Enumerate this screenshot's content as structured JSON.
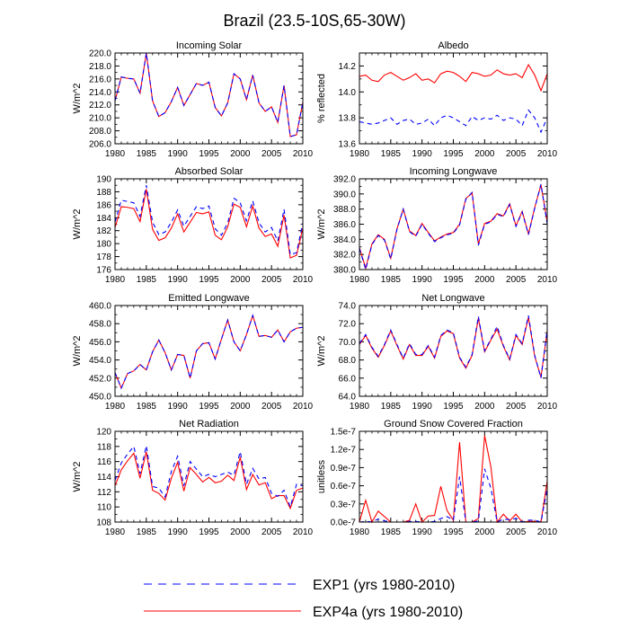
{
  "title": "Brazil (23.5-10S,65-30W)",
  "legend": [
    {
      "label": "EXP1 (yrs 1980-2010)",
      "color": "#0000ff",
      "dash": true
    },
    {
      "label": "EXP4a (yrs 1980-2010)",
      "color": "#ff0000",
      "dash": false
    }
  ],
  "years": [
    1980,
    1981,
    1982,
    1983,
    1984,
    1985,
    1986,
    1987,
    1988,
    1989,
    1990,
    1991,
    1992,
    1993,
    1994,
    1995,
    1996,
    1997,
    1998,
    1999,
    2000,
    2001,
    2002,
    2003,
    2004,
    2005,
    2006,
    2007,
    2008,
    2009,
    2010
  ],
  "chart_data": [
    {
      "type": "line",
      "title": "Incoming Solar",
      "ylabel": "W/m^2",
      "xlim": [
        1980,
        2010
      ],
      "ylim": [
        206,
        220
      ],
      "xticks": [
        "1980",
        "1985",
        "1990",
        "1995",
        "2000",
        "2005",
        "2010"
      ],
      "yticks": [
        "206.0",
        "208.0",
        "210.0",
        "212.0",
        "214.0",
        "216.0",
        "218.0",
        "220.0"
      ],
      "series": [
        {
          "name": "EXP1",
          "values": [
            212.6,
            216.3,
            216.1,
            216.0,
            213.8,
            220.0,
            212.6,
            210.2,
            210.8,
            212.5,
            214.7,
            211.9,
            213.6,
            215.3,
            215.0,
            215.5,
            211.6,
            210.3,
            212.3,
            216.8,
            216.0,
            212.8,
            216.6,
            212.3,
            211.0,
            211.7,
            209.3,
            215.0,
            207.1,
            207.4,
            212.4
          ]
        },
        {
          "name": "EXP4a",
          "values": [
            212.6,
            216.3,
            216.1,
            216.0,
            213.8,
            220.0,
            212.6,
            210.2,
            210.8,
            212.5,
            214.7,
            211.9,
            213.6,
            215.3,
            215.0,
            215.5,
            211.6,
            210.3,
            212.3,
            216.8,
            216.0,
            212.8,
            216.6,
            212.3,
            211.0,
            211.7,
            209.3,
            215.0,
            207.1,
            207.4,
            212.4
          ]
        }
      ]
    },
    {
      "type": "line",
      "title": "Albedo",
      "ylabel": "% reflected",
      "xlim": [
        1980,
        2010
      ],
      "ylim": [
        13.6,
        14.3
      ],
      "xticks": [
        "1980",
        "1985",
        "1990",
        "1995",
        "2000",
        "2005",
        "2010"
      ],
      "yticks": [
        "13.6",
        "13.8",
        "14.0",
        "14.2"
      ],
      "series": [
        {
          "name": "EXP1",
          "values": [
            13.77,
            13.76,
            13.75,
            13.76,
            13.78,
            13.8,
            13.75,
            13.78,
            13.79,
            13.75,
            13.76,
            13.79,
            13.74,
            13.8,
            13.82,
            13.8,
            13.77,
            13.74,
            13.81,
            13.78,
            13.8,
            13.79,
            13.82,
            13.78,
            13.8,
            13.79,
            13.74,
            13.86,
            13.8,
            13.69,
            13.8
          ]
        },
        {
          "name": "EXP4a",
          "values": [
            14.12,
            14.13,
            14.09,
            14.08,
            14.13,
            14.15,
            14.12,
            14.09,
            14.11,
            14.14,
            14.09,
            14.1,
            14.07,
            14.14,
            14.16,
            14.15,
            14.12,
            14.08,
            14.15,
            14.14,
            14.12,
            14.13,
            14.17,
            14.14,
            14.13,
            14.14,
            14.11,
            14.21,
            14.13,
            14.01,
            14.14
          ]
        }
      ]
    },
    {
      "type": "line",
      "title": "Absorbed Solar",
      "ylabel": "W/m^2",
      "xlim": [
        1980,
        2010
      ],
      "ylim": [
        176,
        190
      ],
      "xticks": [
        "1980",
        "1985",
        "1990",
        "1995",
        "2000",
        "2005",
        "2010"
      ],
      "yticks": [
        "176",
        "178",
        "180",
        "182",
        "184",
        "186",
        "188",
        "190"
      ],
      "series": [
        {
          "name": "EXP1",
          "values": [
            183.3,
            186.7,
            186.5,
            186.3,
            184.2,
            189.0,
            183.3,
            181.4,
            181.8,
            183.3,
            185.2,
            182.7,
            184.2,
            185.7,
            185.4,
            185.8,
            182.3,
            181.3,
            183.2,
            187.0,
            186.3,
            183.5,
            186.6,
            183.2,
            181.8,
            182.5,
            180.4,
            185.3,
            178.3,
            178.6,
            183.2
          ]
        },
        {
          "name": "EXP4a",
          "values": [
            182.5,
            185.7,
            185.6,
            185.4,
            183.4,
            188.4,
            182.2,
            180.5,
            180.9,
            182.4,
            184.6,
            181.8,
            183.3,
            184.8,
            184.6,
            184.9,
            181.3,
            180.6,
            182.6,
            186.1,
            185.6,
            182.6,
            185.8,
            182.4,
            181.1,
            181.5,
            179.6,
            184.4,
            177.8,
            178.2,
            182.4
          ]
        }
      ]
    },
    {
      "type": "line",
      "title": "Incoming Longwave",
      "ylabel": "W/m^2",
      "xlim": [
        1980,
        2010
      ],
      "ylim": [
        380,
        392
      ],
      "xticks": [
        "1980",
        "1985",
        "1990",
        "1995",
        "2000",
        "2005",
        "2010"
      ],
      "yticks": [
        "380.0",
        "382.0",
        "384.0",
        "386.0",
        "388.0",
        "390.0",
        "392.0"
      ],
      "series": [
        {
          "name": "EXP1",
          "values": [
            382.8,
            380.0,
            383.3,
            384.5,
            383.9,
            381.4,
            385.3,
            388.0,
            385.0,
            384.4,
            386.0,
            384.8,
            383.7,
            384.2,
            384.6,
            384.8,
            385.9,
            389.3,
            390.2,
            383.2,
            386.0,
            386.3,
            387.3,
            387.0,
            388.6,
            385.7,
            387.6,
            384.6,
            388.1,
            391.3,
            386.0
          ]
        },
        {
          "name": "EXP4a",
          "values": [
            382.9,
            380.2,
            383.4,
            384.6,
            384.0,
            381.5,
            385.4,
            388.0,
            385.1,
            384.5,
            386.1,
            384.9,
            383.8,
            384.3,
            384.7,
            384.9,
            386.0,
            389.4,
            390.1,
            383.4,
            386.1,
            386.4,
            387.4,
            387.1,
            388.7,
            385.8,
            387.7,
            384.7,
            388.2,
            391.2,
            386.3
          ]
        }
      ]
    },
    {
      "type": "line",
      "title": "Emitted Longwave",
      "ylabel": "W/m^2",
      "xlim": [
        1980,
        2010
      ],
      "ylim": [
        450,
        460
      ],
      "xticks": [
        "1980",
        "1985",
        "1990",
        "1995",
        "2000",
        "2005",
        "2010"
      ],
      "yticks": [
        "450.0",
        "452.0",
        "454.0",
        "456.0",
        "458.0",
        "460.0"
      ],
      "series": [
        {
          "name": "EXP1",
          "values": [
            452.6,
            450.9,
            452.5,
            452.8,
            453.5,
            452.9,
            454.9,
            456.2,
            454.8,
            452.9,
            454.6,
            454.5,
            452.0,
            455.0,
            455.8,
            455.9,
            454.1,
            456.3,
            458.4,
            456.0,
            455.0,
            456.8,
            458.9,
            456.6,
            456.7,
            456.5,
            457.3,
            456.0,
            457.1,
            457.5,
            457.6
          ]
        },
        {
          "name": "EXP4a",
          "values": [
            452.6,
            450.9,
            452.5,
            452.8,
            453.5,
            452.9,
            454.9,
            456.2,
            454.8,
            452.9,
            454.6,
            454.5,
            452.0,
            455.0,
            455.8,
            455.9,
            454.1,
            456.3,
            458.4,
            456.0,
            455.0,
            456.8,
            458.9,
            456.6,
            456.7,
            456.5,
            457.3,
            456.0,
            457.1,
            457.5,
            457.6
          ]
        }
      ]
    },
    {
      "type": "line",
      "title": "Net Longwave",
      "ylabel": "W/m^2",
      "xlim": [
        1980,
        2010
      ],
      "ylim": [
        64,
        74
      ],
      "xticks": [
        "1980",
        "1985",
        "1990",
        "1995",
        "2000",
        "2005",
        "2010"
      ],
      "yticks": [
        "64.0",
        "66.0",
        "68.0",
        "70.0",
        "72.0",
        "74.0"
      ],
      "series": [
        {
          "name": "EXP1",
          "values": [
            69.8,
            70.8,
            69.4,
            68.4,
            69.7,
            71.3,
            69.7,
            68.2,
            69.8,
            68.6,
            68.6,
            69.6,
            68.3,
            70.7,
            71.3,
            71.0,
            68.3,
            67.2,
            68.6,
            72.8,
            69.0,
            70.3,
            71.7,
            69.6,
            68.1,
            70.8,
            69.8,
            72.9,
            68.5,
            66.0,
            71.4
          ]
        },
        {
          "name": "EXP4a",
          "values": [
            69.7,
            70.7,
            69.3,
            68.3,
            69.6,
            71.2,
            69.6,
            68.1,
            69.7,
            68.5,
            68.5,
            69.5,
            68.2,
            70.6,
            71.2,
            70.9,
            68.2,
            67.1,
            68.5,
            72.6,
            68.9,
            70.2,
            71.4,
            69.5,
            68.0,
            70.7,
            69.7,
            72.7,
            68.4,
            66.1,
            71.2
          ]
        }
      ]
    },
    {
      "type": "line",
      "title": "Net Radiation",
      "ylabel": "W/m^2",
      "xlim": [
        1980,
        2010
      ],
      "ylim": [
        108,
        120
      ],
      "xticks": [
        "1980",
        "1985",
        "1990",
        "1995",
        "2000",
        "2005",
        "2010"
      ],
      "yticks": [
        "108",
        "110",
        "112",
        "114",
        "116",
        "118",
        "120"
      ],
      "series": [
        {
          "name": "EXP1",
          "values": [
            113.5,
            115.8,
            117.0,
            118.0,
            114.4,
            118.1,
            112.7,
            112.5,
            111.3,
            114.7,
            116.7,
            112.8,
            116.0,
            115.0,
            114.0,
            114.3,
            114.0,
            114.3,
            114.6,
            114.2,
            117.3,
            113.0,
            115.1,
            113.7,
            113.9,
            111.8,
            111.4,
            112.2,
            110.0,
            113.0,
            112.8
          ]
        },
        {
          "name": "EXP4a",
          "values": [
            112.8,
            114.9,
            116.1,
            117.1,
            113.8,
            117.3,
            112.2,
            111.8,
            110.9,
            113.8,
            115.9,
            112.1,
            115.2,
            114.3,
            113.3,
            113.9,
            113.2,
            113.4,
            114.2,
            113.5,
            116.6,
            112.3,
            114.3,
            112.9,
            113.2,
            111.1,
            111.5,
            111.5,
            109.8,
            112.2,
            112.5
          ]
        }
      ]
    },
    {
      "type": "line",
      "title": "Ground Snow Covered Fraction",
      "ylabel": "unitless",
      "xlim": [
        1980,
        2010
      ],
      "ylim": [
        0,
        1.5e-07
      ],
      "xticks": [
        "1980",
        "1985",
        "1990",
        "1995",
        "2000",
        "2005",
        "2010"
      ],
      "yticks": [
        "0.0e-7",
        "0.3e-7",
        "0.6e-7",
        "0.9e-7",
        "1.2e-7",
        "1.5e-7"
      ],
      "series": [
        {
          "name": "EXP1",
          "values": [
            0.0,
            1e-09,
            3e-10,
            5e-09,
            2e-09,
            0.0,
            0.0,
            0.0,
            1e-09,
            1e-09,
            0.0,
            0.0,
            1e-09,
            6e-09,
            9e-09,
            3e-09,
            7.5e-08,
            0.0,
            0.0,
            2e-09,
            8.8e-08,
            5.6e-08,
            0.0,
            5e-09,
            4e-09,
            6e-09,
            0.0,
            3e-09,
            3e-09,
            0.0,
            5.6e-08
          ]
        },
        {
          "name": "EXP4a",
          "values": [
            0.0,
            3.6e-08,
            0.0,
            1.8e-08,
            9e-09,
            0.0,
            0.0,
            0.0,
            3e-09,
            3e-08,
            0.0,
            1e-08,
            1.1e-08,
            5.9e-08,
            1.9e-08,
            3e-09,
            1.32e-07,
            0.0,
            0.0,
            6e-09,
            1.43e-07,
            9.1e-08,
            0.0,
            1.3e-08,
            2e-09,
            1.3e-08,
            0.0,
            1e-09,
            1e-09,
            0.0,
            6.8e-08
          ]
        }
      ]
    }
  ]
}
